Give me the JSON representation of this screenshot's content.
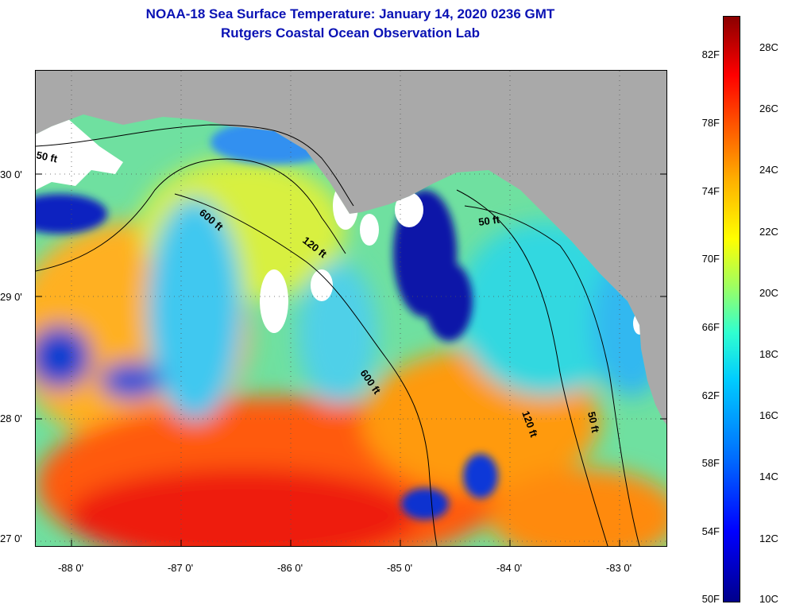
{
  "title": {
    "line1": "NOAA-18 Sea Surface Temperature:  January 14, 2020 0236 GMT",
    "line2": "Rutgers Coastal Ocean Observation Lab"
  },
  "map": {
    "lat_labels": [
      "30 0'",
      "29 0'",
      "28 0'",
      "27 0'"
    ],
    "lon_labels": [
      "-88 0'",
      "-87 0'",
      "-86 0'",
      "-85 0'",
      "-84 0'",
      "-83 0'"
    ],
    "contour_labels": [
      "50 ft",
      "600 ft",
      "120 ft",
      "50 ft",
      "600 ft",
      "120 ft",
      "50 ft"
    ],
    "colors": {
      "land": "#a9a9a9",
      "cloud": "#ffffff",
      "contour": "#000000"
    }
  },
  "colorbar": {
    "fahrenheit": [
      "82F",
      "78F",
      "74F",
      "70F",
      "66F",
      "62F",
      "58F",
      "54F",
      "50F"
    ],
    "celsius": [
      "28C",
      "26C",
      "24C",
      "22C",
      "20C",
      "18C",
      "16C",
      "14C",
      "12C",
      "10C"
    ]
  }
}
